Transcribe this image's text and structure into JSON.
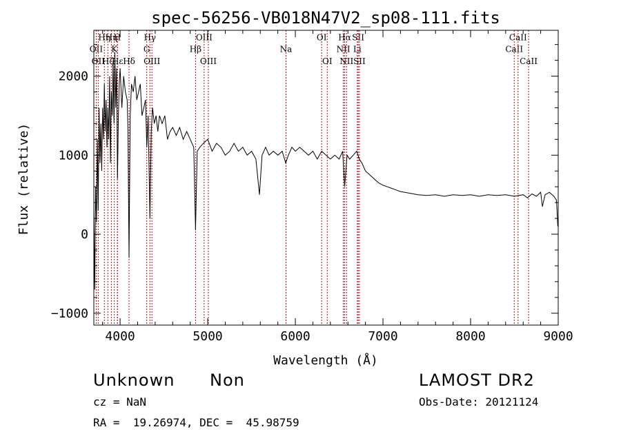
{
  "chart_data": {
    "type": "line",
    "title": "spec-56256-VB018N47V2_sp08-111.fits",
    "xlabel": "Wavelength (Å)",
    "ylabel": "Flux (relative)",
    "xlim": [
      3700,
      9000
    ],
    "ylim": [
      -1150,
      2580
    ],
    "x_ticks": [
      4000,
      5000,
      6000,
      7000,
      8000,
      9000
    ],
    "x_tick_labels": [
      "4000",
      "5000",
      "6000",
      "7000",
      "8000",
      "9000"
    ],
    "y_ticks": [
      -1000,
      0,
      1000,
      2000
    ],
    "y_tick_labels": [
      "−1000",
      "0",
      "1000",
      "2000"
    ],
    "grid": false,
    "line_color": "#000000",
    "marker_color": "#a01010",
    "series": [
      {
        "values": [
          [
            3700,
            300
          ],
          [
            3710,
            -700
          ],
          [
            3720,
            600
          ],
          [
            3730,
            150
          ],
          [
            3740,
            1200
          ],
          [
            3750,
            300
          ],
          [
            3760,
            1600
          ],
          [
            3770,
            900
          ],
          [
            3780,
            1400
          ],
          [
            3790,
            800
          ],
          [
            3800,
            1600
          ],
          [
            3810,
            1200
          ],
          [
            3820,
            1900
          ],
          [
            3830,
            1300
          ],
          [
            3840,
            1700
          ],
          [
            3850,
            1100
          ],
          [
            3860,
            1600
          ],
          [
            3870,
            1200
          ],
          [
            3880,
            2000
          ],
          [
            3890,
            900
          ],
          [
            3900,
            1800
          ],
          [
            3910,
            1500
          ],
          [
            3920,
            2200
          ],
          [
            3930,
            1400
          ],
          [
            3940,
            2300
          ],
          [
            3950,
            1600
          ],
          [
            3960,
            2100
          ],
          [
            3970,
            700
          ],
          [
            3980,
            1500
          ],
          [
            3990,
            1900
          ],
          [
            4000,
            2100
          ],
          [
            4020,
            1600
          ],
          [
            4040,
            2000
          ],
          [
            4060,
            1800
          ],
          [
            4080,
            1700
          ],
          [
            4090,
            1300
          ],
          [
            4102,
            -300
          ],
          [
            4115,
            1500
          ],
          [
            4130,
            1900
          ],
          [
            4150,
            1800
          ],
          [
            4170,
            2000
          ],
          [
            4190,
            1700
          ],
          [
            4210,
            1800
          ],
          [
            4230,
            1900
          ],
          [
            4250,
            1500
          ],
          [
            4270,
            1600
          ],
          [
            4290,
            1700
          ],
          [
            4305,
            1100
          ],
          [
            4320,
            1500
          ],
          [
            4340,
            200
          ],
          [
            4355,
            1300
          ],
          [
            4370,
            1600
          ],
          [
            4390,
            1400
          ],
          [
            4410,
            1500
          ],
          [
            4430,
            1300
          ],
          [
            4450,
            1500
          ],
          [
            4480,
            1400
          ],
          [
            4510,
            1500
          ],
          [
            4540,
            1200
          ],
          [
            4570,
            1300
          ],
          [
            4600,
            1350
          ],
          [
            4640,
            1250
          ],
          [
            4680,
            1350
          ],
          [
            4720,
            1200
          ],
          [
            4760,
            1300
          ],
          [
            4800,
            1200
          ],
          [
            4840,
            1100
          ],
          [
            4861,
            50
          ],
          [
            4880,
            1050
          ],
          [
            4910,
            1100
          ],
          [
            4950,
            1150
          ],
          [
            5000,
            1200
          ],
          [
            5050,
            1050
          ],
          [
            5100,
            1150
          ],
          [
            5150,
            1100
          ],
          [
            5200,
            1000
          ],
          [
            5250,
            1050
          ],
          [
            5300,
            1150
          ],
          [
            5350,
            1050
          ],
          [
            5400,
            1100
          ],
          [
            5450,
            1000
          ],
          [
            5500,
            1050
          ],
          [
            5550,
            950
          ],
          [
            5590,
            500
          ],
          [
            5620,
            1000
          ],
          [
            5660,
            1100
          ],
          [
            5700,
            1000
          ],
          [
            5750,
            1050
          ],
          [
            5800,
            1000
          ],
          [
            5850,
            1050
          ],
          [
            5890,
            900
          ],
          [
            5920,
            1000
          ],
          [
            5960,
            1100
          ],
          [
            6000,
            1050
          ],
          [
            6050,
            1100
          ],
          [
            6100,
            1050
          ],
          [
            6150,
            1000
          ],
          [
            6200,
            1050
          ],
          [
            6250,
            950
          ],
          [
            6300,
            1050
          ],
          [
            6350,
            1000
          ],
          [
            6400,
            950
          ],
          [
            6450,
            1000
          ],
          [
            6500,
            950
          ],
          [
            6540,
            1050
          ],
          [
            6563,
            600
          ],
          [
            6590,
            1000
          ],
          [
            6620,
            950
          ],
          [
            6660,
            1000
          ],
          [
            6700,
            1050
          ],
          [
            6730,
            950
          ],
          [
            6760,
            900
          ],
          [
            6800,
            800
          ],
          [
            6850,
            750
          ],
          [
            6900,
            700
          ],
          [
            6950,
            650
          ],
          [
            7000,
            620
          ],
          [
            7050,
            600
          ],
          [
            7100,
            580
          ],
          [
            7150,
            560
          ],
          [
            7200,
            540
          ],
          [
            7300,
            520
          ],
          [
            7400,
            500
          ],
          [
            7500,
            490
          ],
          [
            7600,
            500
          ],
          [
            7700,
            480
          ],
          [
            7800,
            500
          ],
          [
            7900,
            490
          ],
          [
            8000,
            500
          ],
          [
            8100,
            480
          ],
          [
            8200,
            500
          ],
          [
            8300,
            490
          ],
          [
            8400,
            500
          ],
          [
            8500,
            480
          ],
          [
            8600,
            500
          ],
          [
            8650,
            460
          ],
          [
            8700,
            510
          ],
          [
            8750,
            480
          ],
          [
            8800,
            530
          ],
          [
            8820,
            350
          ],
          [
            8850,
            500
          ],
          [
            8900,
            530
          ],
          [
            8950,
            480
          ],
          [
            8980,
            430
          ],
          [
            8995,
            100
          ]
        ]
      }
    ],
    "markers": [
      {
        "x": 3727,
        "lines": [
          "OII"
        ],
        "label_ys": [
          2340
        ]
      },
      {
        "x": 3750,
        "lines": [
          "OII"
        ],
        "label_ys": [
          2190
        ]
      },
      {
        "x": 3820,
        "lines": [
          "Hη"
        ],
        "label_ys": [
          2490
        ]
      },
      {
        "x": 3860,
        "lines": [
          "Hζ"
        ],
        "label_ys": [
          2190
        ]
      },
      {
        "x": 3900,
        "lines": [
          "Hη"
        ],
        "label_ys": [
          2490
        ]
      },
      {
        "x": 3934,
        "lines": [
          "K"
        ],
        "label_ys": [
          2340
        ]
      },
      {
        "x": 3968,
        "lines": [
          "H"
        ],
        "label_ys": [
          2490
        ]
      },
      {
        "x": 3970,
        "lines": [
          "Hε"
        ],
        "label_ys": [
          2190
        ]
      },
      {
        "x": 4102,
        "lines": [
          "Hδ"
        ],
        "label_ys": [
          2190
        ]
      },
      {
        "x": 4304,
        "lines": [
          "G"
        ],
        "label_ys": [
          2340
        ]
      },
      {
        "x": 4340,
        "lines": [
          "Hγ"
        ],
        "label_ys": [
          2490
        ]
      },
      {
        "x": 4363,
        "lines": [
          "OIII"
        ],
        "label_ys": [
          2190
        ]
      },
      {
        "x": 4861,
        "lines": [
          "Hβ"
        ],
        "label_ys": [
          2340
        ]
      },
      {
        "x": 4959,
        "lines": [
          "OIII"
        ],
        "label_ys": [
          2490
        ]
      },
      {
        "x": 5007,
        "lines": [
          "OIII"
        ],
        "label_ys": [
          2190
        ]
      },
      {
        "x": 5893,
        "lines": [
          "Na"
        ],
        "label_ys": [
          2340
        ]
      },
      {
        "x": 6300,
        "lines": [
          "OI"
        ],
        "label_ys": [
          2490
        ]
      },
      {
        "x": 6364,
        "lines": [
          "OI"
        ],
        "label_ys": [
          2190
        ]
      },
      {
        "x": 6548,
        "lines": [
          "NII"
        ],
        "label_ys": [
          2340
        ]
      },
      {
        "x": 6563,
        "lines": [
          "Hα"
        ],
        "label_ys": [
          2490
        ]
      },
      {
        "x": 6584,
        "lines": [
          "NII"
        ],
        "label_ys": [
          2190
        ]
      },
      {
        "x": 6707,
        "lines": [
          "Li"
        ],
        "label_ys": [
          2340
        ]
      },
      {
        "x": 6717,
        "lines": [
          "SII"
        ],
        "label_ys": [
          2490
        ]
      },
      {
        "x": 6731,
        "lines": [
          "SII"
        ],
        "label_ys": [
          2190
        ]
      },
      {
        "x": 8498,
        "lines": [
          "CaII"
        ],
        "label_ys": [
          2340
        ]
      },
      {
        "x": 8542,
        "lines": [
          "CaII"
        ],
        "label_ys": [
          2490
        ]
      },
      {
        "x": 8662,
        "lines": [
          "CaII"
        ],
        "label_ys": [
          2190
        ]
      }
    ]
  },
  "info": {
    "class_label": "Unknown",
    "subclass_label": "Non",
    "survey": "LAMOST DR2",
    "cz_text": "cz = NaN",
    "obs_date_text": "Obs-Date: 20121124",
    "radec_text": "RA =  19.26974, DEC =  45.98759"
  }
}
